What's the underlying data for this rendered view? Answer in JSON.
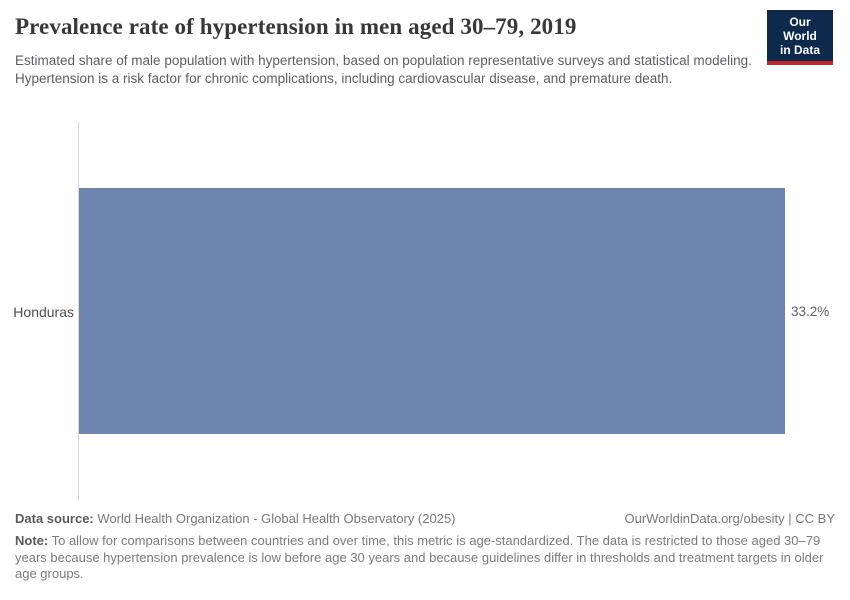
{
  "header": {
    "title": "Prevalence rate of hypertension in men aged 30–79, 2019",
    "subtitle": "Estimated share of male population with hypertension, based on population representative surveys and statistical modeling. Hypertension is a risk factor for chronic complications, including cardiovascular disease, and premature death.",
    "logo": {
      "line1": "Our World",
      "line2": "in Data",
      "bg_color": "#0d2a4d",
      "accent_color": "#c0262c"
    }
  },
  "chart_data": {
    "type": "bar",
    "orientation": "horizontal",
    "title": "Prevalence rate of hypertension in men aged 30–79, 2019",
    "categories": [
      "Honduras"
    ],
    "values": [
      33.2
    ],
    "value_labels": [
      "33.2%"
    ],
    "xlabel": "",
    "ylabel": "",
    "xlim": [
      0,
      33.2
    ],
    "grid": false,
    "legend": false,
    "bar_color": "#6d84ae",
    "axis_color": "#d9d9d9"
  },
  "footer": {
    "data_source_label": "Data source:",
    "data_source_text": " World Health Organization - Global Health Observatory (2025)",
    "link_text": "OurWorldinData.org/obesity | CC BY",
    "note_label": "Note:",
    "note_text": " To allow for comparisons between countries and over time, this metric is age-standardized. The data is restricted to those aged 30–79 years because hypertension prevalence is low before age 30 years and because guidelines differ in thresholds and treatment targets in older age groups."
  }
}
